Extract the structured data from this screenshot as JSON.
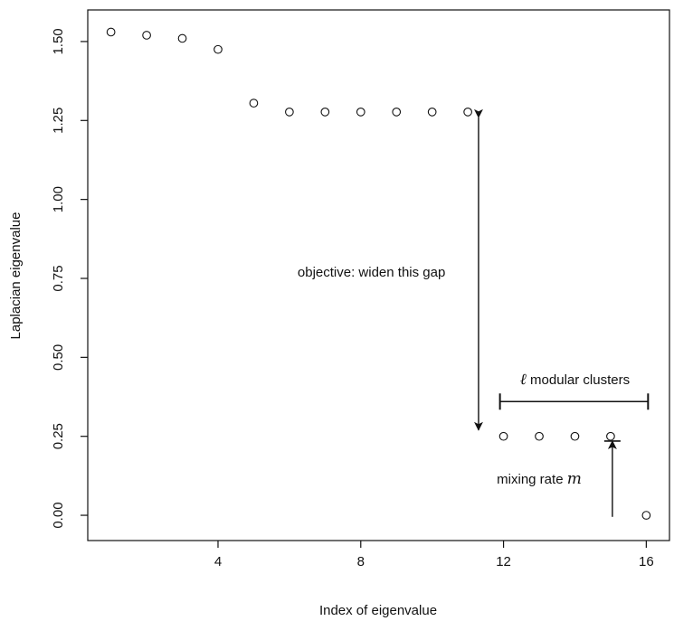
{
  "chart_data": {
    "type": "scatter",
    "title": "",
    "xlabel": "Index of eigenvalue",
    "ylabel": "Laplacian eigenvalue",
    "xlim": [
      0.35,
      16.65
    ],
    "ylim": [
      -0.08,
      1.6
    ],
    "x_ticks": [
      4,
      8,
      12,
      16
    ],
    "x_tick_labels": [
      "4",
      "8",
      "12",
      "16"
    ],
    "y_ticks": [
      0,
      0.25,
      0.5,
      0.75,
      1.0,
      1.25,
      1.5
    ],
    "y_tick_labels": [
      "0.00",
      "0.25",
      "0.50",
      "0.75",
      "1.00",
      "1.25",
      "1.50"
    ],
    "grid": false,
    "marker": "open-circle",
    "points": [
      {
        "x": 1,
        "y": 1.53
      },
      {
        "x": 2,
        "y": 1.52
      },
      {
        "x": 3,
        "y": 1.51
      },
      {
        "x": 4,
        "y": 1.475
      },
      {
        "x": 5,
        "y": 1.305
      },
      {
        "x": 6,
        "y": 1.277
      },
      {
        "x": 7,
        "y": 1.277
      },
      {
        "x": 8,
        "y": 1.277
      },
      {
        "x": 9,
        "y": 1.277
      },
      {
        "x": 10,
        "y": 1.277
      },
      {
        "x": 11,
        "y": 1.277
      },
      {
        "x": 12,
        "y": 0.25
      },
      {
        "x": 13,
        "y": 0.25
      },
      {
        "x": 14,
        "y": 0.25
      },
      {
        "x": 15,
        "y": 0.25
      },
      {
        "x": 16,
        "y": 0.0
      }
    ],
    "annotations": {
      "gap": {
        "text": "objective: widen this gap",
        "arrow_x": 11.3,
        "arrow_from_y": 1.26,
        "arrow_to_y": 0.27,
        "text_at": {
          "x": 8.3,
          "y": 0.77
        }
      },
      "clusters": {
        "symbol": "ℓ",
        "text": " modular clusters",
        "bracket_from_x": 11.9,
        "bracket_to_x": 16.05,
        "bracket_y": 0.36,
        "text_at": {
          "x": 14.0,
          "y": 0.43
        }
      },
      "mixing": {
        "text": "mixing rate ",
        "symbol": "m",
        "arrow_x": 15.05,
        "arrow_from_y": -0.005,
        "arrow_to_y": 0.235,
        "text_at": {
          "x": 13.0,
          "y": 0.115
        }
      }
    }
  }
}
